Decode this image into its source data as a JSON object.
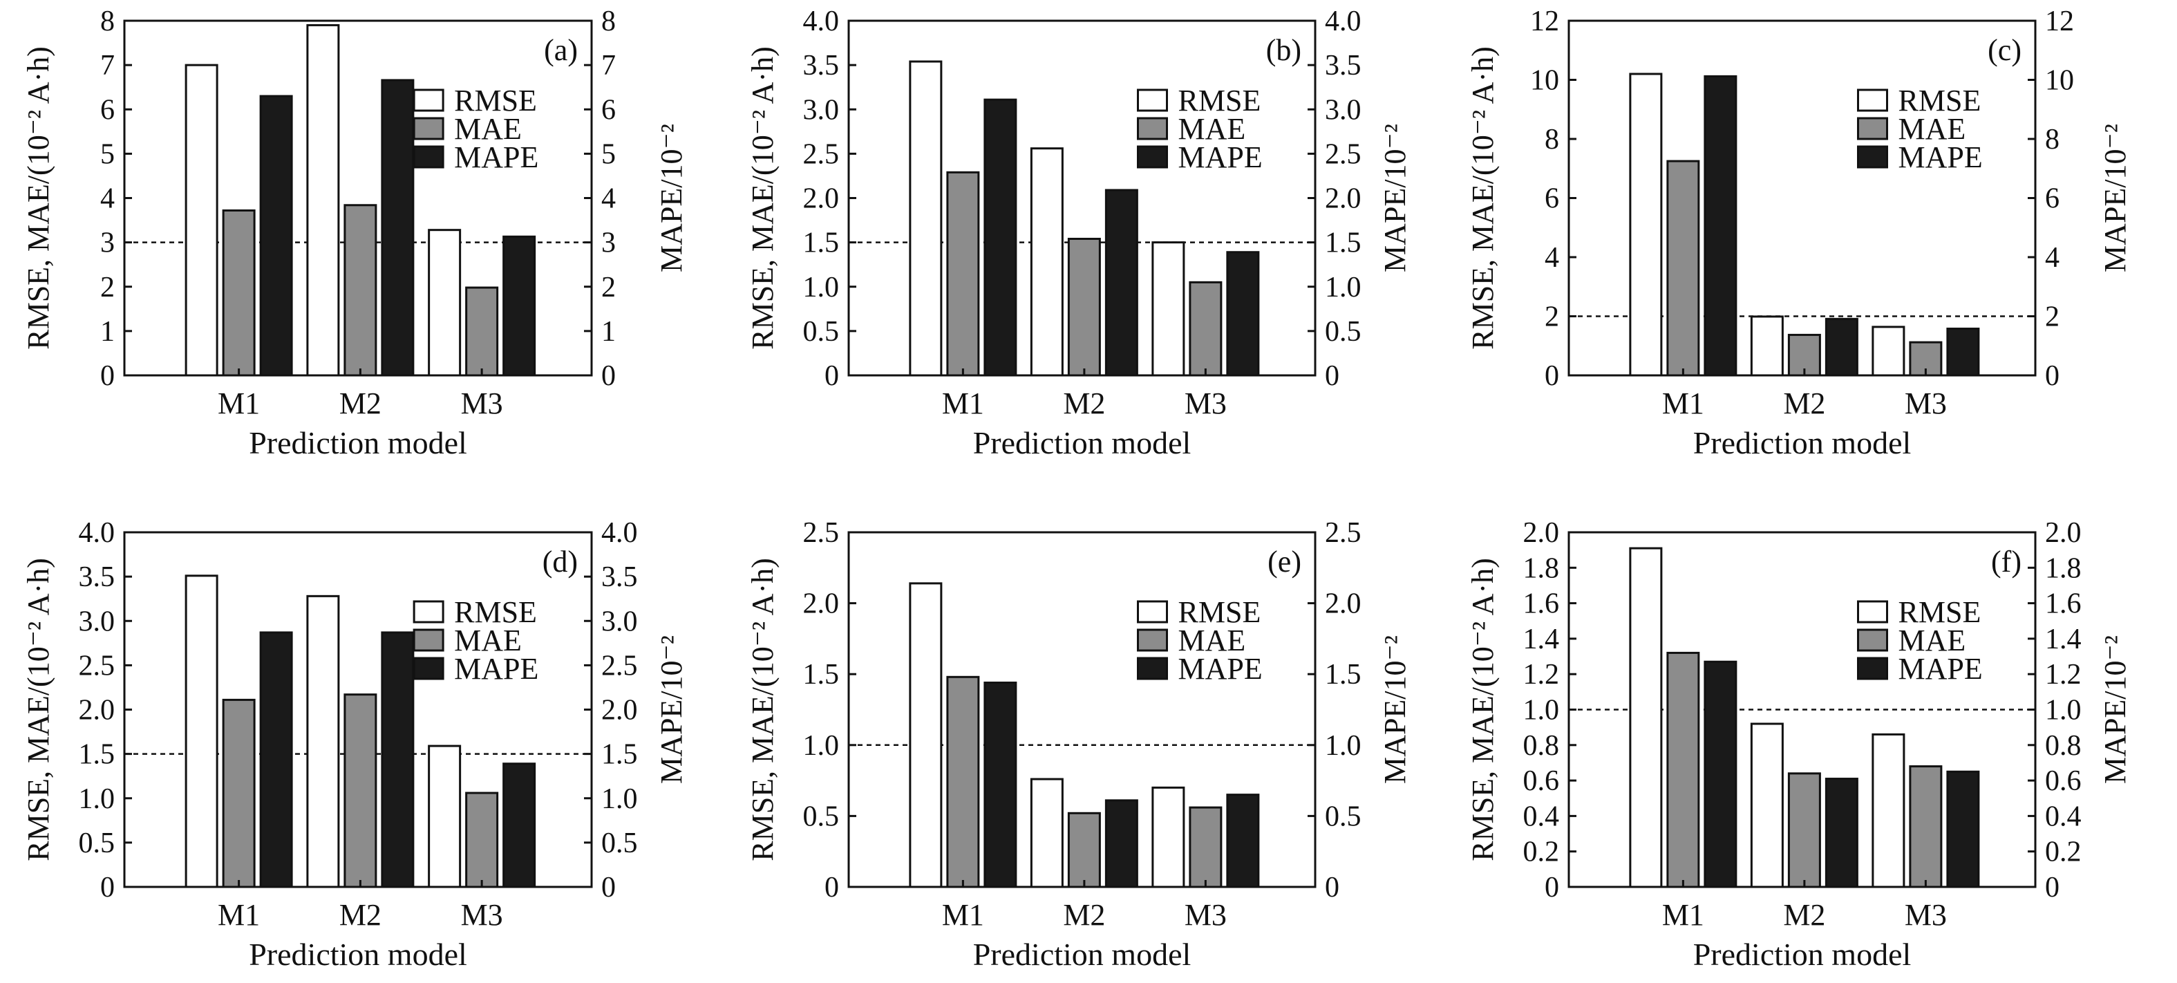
{
  "chart_data": [
    {
      "type": "bar",
      "panel": "(a)",
      "categories": [
        "M1",
        "M2",
        "M3"
      ],
      "series": [
        {
          "name": "RMSE",
          "values": [
            7.0,
            7.9,
            3.28
          ],
          "color": "#ffffff"
        },
        {
          "name": "MAE",
          "values": [
            3.72,
            3.84,
            1.98
          ],
          "color": "#8c8c8c"
        },
        {
          "name": "MAPE",
          "values": [
            6.3,
            6.66,
            3.13
          ],
          "color": "#1a1a1a"
        }
      ],
      "reference_line": 3,
      "xlabel": "Prediction model",
      "ylabel": "RMSE, MAE/(10⁻² A·h)",
      "ylabel_right": "MAPE/10⁻²",
      "ylim": [
        0,
        8
      ],
      "yticks": [
        0,
        1,
        2,
        3,
        4,
        5,
        6,
        7,
        8
      ],
      "ytick_labels": [
        "0",
        "1",
        "2",
        "3",
        "4",
        "5",
        "6",
        "7",
        "8"
      ]
    },
    {
      "type": "bar",
      "panel": "(b)",
      "categories": [
        "M1",
        "M2",
        "M3"
      ],
      "series": [
        {
          "name": "RMSE",
          "values": [
            3.54,
            2.56,
            1.5
          ],
          "color": "#ffffff"
        },
        {
          "name": "MAE",
          "values": [
            2.29,
            1.54,
            1.05
          ],
          "color": "#8c8c8c"
        },
        {
          "name": "MAPE",
          "values": [
            3.11,
            2.09,
            1.39
          ],
          "color": "#1a1a1a"
        }
      ],
      "reference_line": 1.5,
      "xlabel": "Prediction model",
      "ylabel": "RMSE, MAE/(10⁻² A·h)",
      "ylabel_right": "MAPE/10⁻²",
      "ylim": [
        0,
        4
      ],
      "yticks": [
        0,
        0.5,
        1,
        1.5,
        2,
        2.5,
        3,
        3.5,
        4
      ],
      "ytick_labels": [
        "0",
        "0.5",
        "1.0",
        "1.5",
        "2.0",
        "2.5",
        "3.0",
        "3.5",
        "4.0"
      ]
    },
    {
      "type": "bar",
      "panel": "(c)",
      "categories": [
        "M1",
        "M2",
        "M3"
      ],
      "series": [
        {
          "name": "RMSE",
          "values": [
            10.2,
            1.99,
            1.64
          ],
          "color": "#ffffff"
        },
        {
          "name": "MAE",
          "values": [
            7.25,
            1.37,
            1.12
          ],
          "color": "#8c8c8c"
        },
        {
          "name": "MAPE",
          "values": [
            10.12,
            1.91,
            1.58
          ],
          "color": "#1a1a1a"
        }
      ],
      "reference_line": 2,
      "xlabel": "Prediction model",
      "ylabel": "RMSE, MAE/(10⁻² A·h)",
      "ylabel_right": "MAPE/10⁻²",
      "ylim": [
        0,
        12
      ],
      "yticks": [
        0,
        2,
        4,
        6,
        8,
        10,
        12
      ],
      "ytick_labels": [
        "0",
        "2",
        "4",
        "6",
        "8",
        "10",
        "12"
      ]
    },
    {
      "type": "bar",
      "panel": "(d)",
      "categories": [
        "M1",
        "M2",
        "M3"
      ],
      "series": [
        {
          "name": "RMSE",
          "values": [
            3.51,
            3.28,
            1.59
          ],
          "color": "#ffffff"
        },
        {
          "name": "MAE",
          "values": [
            2.11,
            2.17,
            1.06
          ],
          "color": "#8c8c8c"
        },
        {
          "name": "MAPE",
          "values": [
            2.87,
            2.87,
            1.39
          ],
          "color": "#1a1a1a"
        }
      ],
      "reference_line": 1.5,
      "xlabel": "Prediction model",
      "ylabel": "RMSE, MAE/(10⁻² A·h)",
      "ylabel_right": "MAPE/10⁻²",
      "ylim": [
        0,
        4
      ],
      "yticks": [
        0,
        0.5,
        1,
        1.5,
        2,
        2.5,
        3,
        3.5,
        4
      ],
      "ytick_labels": [
        "0",
        "0.5",
        "1.0",
        "1.5",
        "2.0",
        "2.5",
        "3.0",
        "3.5",
        "4.0"
      ]
    },
    {
      "type": "bar",
      "panel": "(e)",
      "categories": [
        "M1",
        "M2",
        "M3"
      ],
      "series": [
        {
          "name": "RMSE",
          "values": [
            2.14,
            0.76,
            0.7
          ],
          "color": "#ffffff"
        },
        {
          "name": "MAE",
          "values": [
            1.48,
            0.52,
            0.56
          ],
          "color": "#8c8c8c"
        },
        {
          "name": "MAPE",
          "values": [
            1.44,
            0.61,
            0.65
          ],
          "color": "#1a1a1a"
        }
      ],
      "reference_line": 1,
      "xlabel": "Prediction model",
      "ylabel": "RMSE, MAE/(10⁻² A·h)",
      "ylabel_right": "MAPE/10⁻²",
      "ylim": [
        0,
        2.5
      ],
      "yticks": [
        0,
        0.5,
        1,
        1.5,
        2,
        2.5
      ],
      "ytick_labels": [
        "0",
        "0.5",
        "1.0",
        "1.5",
        "2.0",
        "2.5"
      ]
    },
    {
      "type": "bar",
      "panel": "(f)",
      "categories": [
        "M1",
        "M2",
        "M3"
      ],
      "series": [
        {
          "name": "RMSE",
          "values": [
            1.91,
            0.92,
            0.86
          ],
          "color": "#ffffff"
        },
        {
          "name": "MAE",
          "values": [
            1.32,
            0.64,
            0.68
          ],
          "color": "#8c8c8c"
        },
        {
          "name": "MAPE",
          "values": [
            1.27,
            0.61,
            0.65
          ],
          "color": "#1a1a1a"
        }
      ],
      "reference_line": 1,
      "xlabel": "Prediction model",
      "ylabel": "RMSE, MAE/(10⁻² A·h)",
      "ylabel_right": "MAPE/10⁻²",
      "ylim": [
        0,
        2
      ],
      "yticks": [
        0,
        0.2,
        0.4,
        0.6,
        0.8,
        1,
        1.2,
        1.4,
        1.6,
        1.8,
        2
      ],
      "ytick_labels": [
        "0",
        "0.2",
        "0.4",
        "0.6",
        "0.8",
        "1.0",
        "1.2",
        "1.4",
        "1.6",
        "1.8",
        "2.0"
      ]
    }
  ]
}
